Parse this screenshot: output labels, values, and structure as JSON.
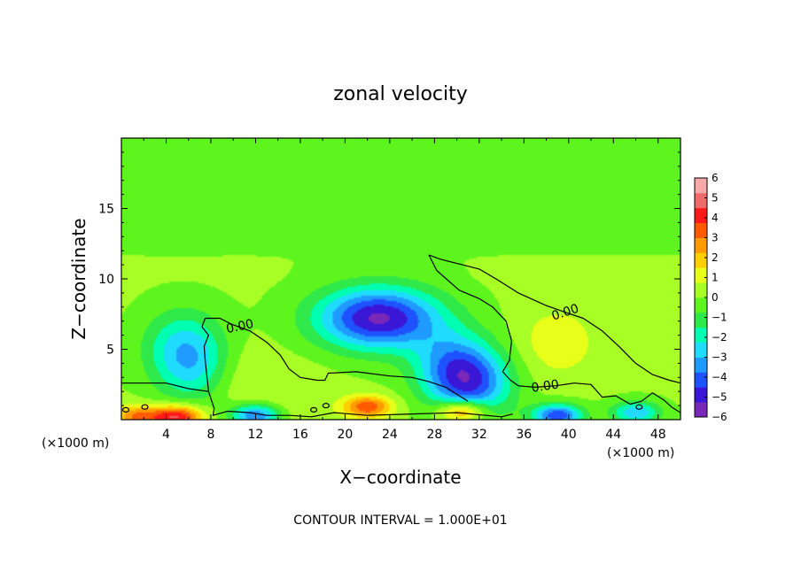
{
  "chart_data": {
    "type": "heatmap",
    "title": "zonal velocity",
    "xlabel": "X−coordinate",
    "ylabel": "Z−coordinate",
    "x_unit_left": "(×1000 m)",
    "x_unit_right": "(×1000 m)",
    "xlim": [
      0,
      50
    ],
    "ylim": [
      0,
      20
    ],
    "xticks": [
      4,
      8,
      12,
      16,
      20,
      24,
      28,
      32,
      36,
      40,
      44,
      48
    ],
    "yticks": [
      5,
      10,
      15
    ],
    "colorbar": {
      "min": -6,
      "max": 6,
      "tick_values": [
        6,
        5,
        4,
        3,
        2,
        1,
        0,
        -1,
        -2,
        -3,
        -4,
        -5,
        -6
      ],
      "tick_labels": [
        "6",
        "5",
        "4",
        "3",
        "2",
        "1",
        "0",
        "−1",
        "−2",
        "−3",
        "−4",
        "−5",
        "−6"
      ],
      "colors": [
        "#7a28b8",
        "#3a16d6",
        "#1f52ff",
        "#1f9bff",
        "#1fdcff",
        "#00ffb0",
        "#2fe84a",
        "#5ef51f",
        "#a8ff26",
        "#e8ff1a",
        "#ffd000",
        "#ff9b00",
        "#ff5a00",
        "#ff1a1a",
        "#f06a6a",
        "#f7a8a8"
      ]
    },
    "contour_level": 0,
    "contour_label": "0.00",
    "contour_interval_note": "CONTOUR INTERVAL =  1.000E+01",
    "features": [
      {
        "kind": "min",
        "x": 23,
        "z": 7.2,
        "value": -5.5
      },
      {
        "kind": "min",
        "x": 31.5,
        "z": 2.5,
        "value": -3.5
      },
      {
        "kind": "min",
        "x": 29.5,
        "z": 3.8,
        "value": -2.8
      },
      {
        "kind": "min",
        "x": 5.5,
        "z": 5.5,
        "value": -2.0
      },
      {
        "kind": "min",
        "x": 6.5,
        "z": 3.5,
        "value": -2.2
      },
      {
        "kind": "min",
        "x": 12,
        "z": 0.3,
        "value": -4.0
      },
      {
        "kind": "min",
        "x": 39,
        "z": 0.3,
        "value": -4.5
      },
      {
        "kind": "min",
        "x": 46,
        "z": 0.5,
        "value": -3.0
      },
      {
        "kind": "max",
        "x": 39,
        "z": 5.5,
        "value": 1.2
      },
      {
        "kind": "max",
        "x": 10,
        "z": 3.0,
        "value": 0.8
      },
      {
        "kind": "max",
        "x": 22,
        "z": 0.9,
        "value": 3.5
      },
      {
        "kind": "max",
        "x": 30.5,
        "z": 0.6,
        "value": 3.8
      },
      {
        "kind": "max",
        "x": 5,
        "z": 0.2,
        "value": 4.5
      },
      {
        "kind": "max",
        "x": 1.5,
        "z": 0.2,
        "value": 3.0
      },
      {
        "kind": "max",
        "x": 15.5,
        "z": 1.5,
        "value": 0.5
      }
    ]
  }
}
